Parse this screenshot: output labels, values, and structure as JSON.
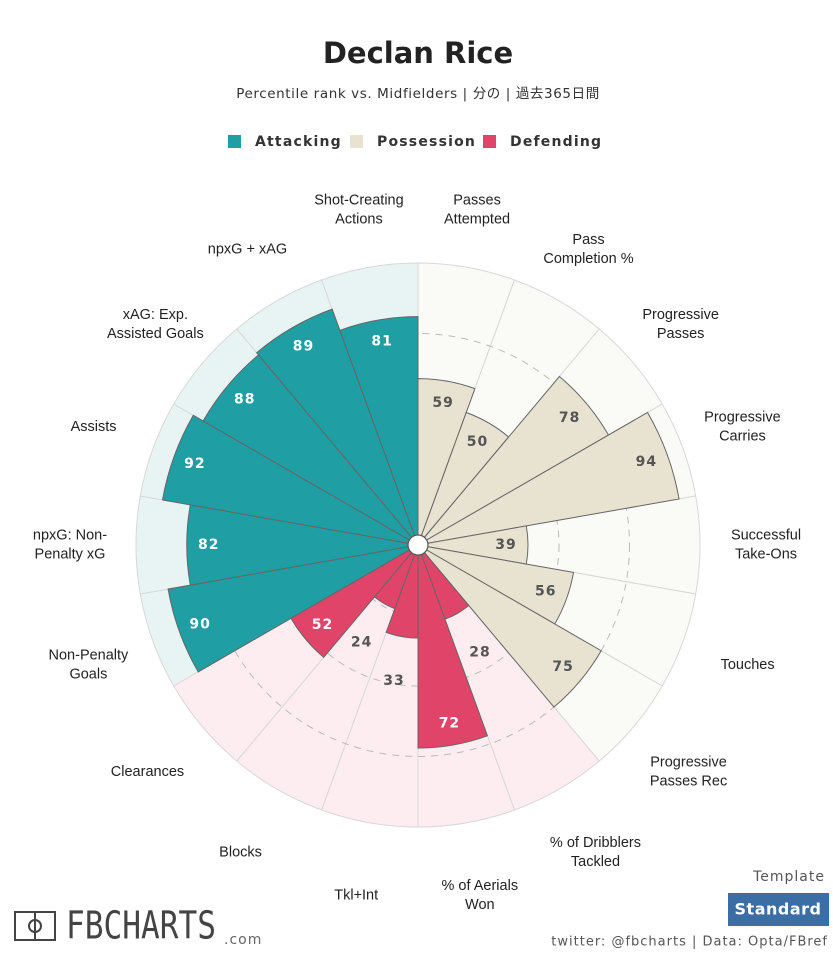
{
  "chart_data": {
    "type": "polar-bar",
    "title": "Declan Rice",
    "subtitle": "Percentile rank vs. Midfielders | 分の | 過去365日間",
    "rlim": [
      0,
      100
    ],
    "series": [
      {
        "name": "Attacking",
        "color": "#1f9ea3",
        "background": "#e8f4f4",
        "label_color": "#ffffff",
        "categories": [
          "Non-Penalty\nGoals",
          "npxG: Non-\nPenalty xG",
          "Assists",
          "xAG: Exp.\nAssisted Goals",
          "npxG + xAG",
          "Shot-Creating\nActions"
        ],
        "values": [
          90,
          82,
          92,
          88,
          89,
          81
        ]
      },
      {
        "name": "Possession",
        "color": "#e8e2d1",
        "background": "#fafaf7",
        "label_color": "#555555",
        "categories": [
          "Passes\nAttempted",
          "Pass\nCompletion %",
          "Progressive\nPasses",
          "Progressive\nCarries",
          "Successful\nTake-Ons",
          "Touches",
          "Progressive\nPasses Rec"
        ],
        "values": [
          59,
          50,
          78,
          94,
          39,
          56,
          75
        ]
      },
      {
        "name": "Defending",
        "color": "#e04469",
        "background": "#fdecf0",
        "label_color": "#ffffff",
        "categories": [
          "% of Dribblers\nTackled",
          "% of Aerials\nWon",
          "Tkl+Int",
          "Blocks",
          "Clearances"
        ],
        "values": [
          28,
          72,
          33,
          24,
          52
        ]
      }
    ],
    "template_label": "Template",
    "template_value": "Standard",
    "credit": "twitter: @fbcharts | Data: Opta/FBref",
    "logo": {
      "name": "FBCHARTS",
      "suffix": ".com"
    }
  }
}
